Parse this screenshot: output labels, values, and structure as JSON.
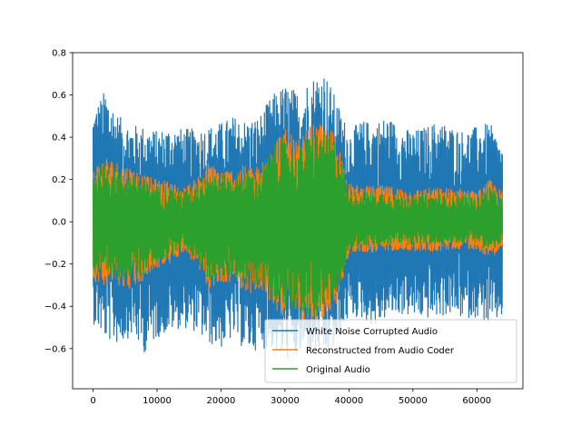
{
  "chart_data": {
    "type": "line",
    "title": "",
    "xlabel": "",
    "ylabel": "",
    "xlim": [
      -3200,
      67200
    ],
    "ylim": [
      -0.79,
      0.8
    ],
    "xticks": [
      0,
      10000,
      20000,
      30000,
      40000,
      50000,
      60000
    ],
    "xtick_labels": [
      "0",
      "10000",
      "20000",
      "30000",
      "40000",
      "50000",
      "60000"
    ],
    "yticks": [
      -0.6,
      -0.4,
      -0.2,
      0.0,
      0.2,
      0.4,
      0.6,
      0.8
    ],
    "ytick_labels": [
      "−0.6",
      "−0.4",
      "−0.2",
      "0.0",
      "0.2",
      "0.4",
      "0.6",
      "0.8"
    ],
    "grid": false,
    "legend_position": "lower-right",
    "x_range": [
      0,
      64000
    ],
    "series": [
      {
        "name": "White Noise Corrupted Audio",
        "color": "#1f77b4",
        "envelope_x": [
          0,
          2000,
          4000,
          6000,
          8000,
          10000,
          12000,
          14000,
          16000,
          18000,
          20000,
          22000,
          24000,
          26000,
          28000,
          30000,
          32000,
          34000,
          36000,
          38000,
          40000,
          42000,
          44000,
          46000,
          48000,
          50000,
          52000,
          54000,
          56000,
          58000,
          60000,
          62000,
          64000
        ],
        "upper": [
          0.53,
          0.63,
          0.5,
          0.46,
          0.45,
          0.43,
          0.45,
          0.44,
          0.44,
          0.45,
          0.47,
          0.5,
          0.48,
          0.5,
          0.6,
          0.65,
          0.62,
          0.68,
          0.73,
          0.58,
          0.43,
          0.48,
          0.47,
          0.5,
          0.45,
          0.43,
          0.45,
          0.48,
          0.45,
          0.43,
          0.45,
          0.47,
          0.35
        ],
        "lower": [
          -0.48,
          -0.56,
          -0.58,
          -0.54,
          -0.62,
          -0.55,
          -0.52,
          -0.5,
          -0.52,
          -0.58,
          -0.6,
          -0.55,
          -0.62,
          -0.6,
          -0.6,
          -0.65,
          -0.65,
          -0.62,
          -0.66,
          -0.6,
          -0.45,
          -0.46,
          -0.5,
          -0.45,
          -0.44,
          -0.45,
          -0.46,
          -0.45,
          -0.44,
          -0.46,
          -0.45,
          -0.5,
          -0.45
        ]
      },
      {
        "name": "Reconstructed from Audio Coder",
        "color": "#ff7f0e",
        "envelope_x": [
          0,
          2000,
          4000,
          6000,
          8000,
          10000,
          12000,
          14000,
          16000,
          18000,
          20000,
          22000,
          24000,
          26000,
          28000,
          30000,
          32000,
          34000,
          36000,
          38000,
          40000,
          42000,
          44000,
          46000,
          48000,
          50000,
          52000,
          54000,
          56000,
          58000,
          60000,
          62000,
          64000
        ],
        "upper": [
          0.26,
          0.31,
          0.28,
          0.26,
          0.22,
          0.2,
          0.19,
          0.16,
          0.2,
          0.28,
          0.25,
          0.25,
          0.27,
          0.26,
          0.4,
          0.44,
          0.38,
          0.46,
          0.46,
          0.42,
          0.18,
          0.17,
          0.17,
          0.17,
          0.16,
          0.15,
          0.16,
          0.16,
          0.16,
          0.16,
          0.14,
          0.2,
          0.14
        ],
        "lower": [
          -0.28,
          -0.3,
          -0.3,
          -0.32,
          -0.28,
          -0.22,
          -0.2,
          -0.14,
          -0.2,
          -0.32,
          -0.3,
          -0.28,
          -0.34,
          -0.33,
          -0.4,
          -0.46,
          -0.45,
          -0.52,
          -0.46,
          -0.4,
          -0.15,
          -0.14,
          -0.15,
          -0.14,
          -0.13,
          -0.14,
          -0.14,
          -0.14,
          -0.13,
          -0.13,
          -0.13,
          -0.17,
          -0.13
        ]
      },
      {
        "name": "Original Audio",
        "color": "#2ca02c",
        "envelope_x": [
          0,
          2000,
          4000,
          6000,
          8000,
          10000,
          12000,
          14000,
          16000,
          18000,
          20000,
          22000,
          24000,
          26000,
          28000,
          30000,
          32000,
          34000,
          36000,
          38000,
          40000,
          42000,
          44000,
          46000,
          48000,
          50000,
          52000,
          54000,
          56000,
          58000,
          60000,
          62000,
          64000
        ],
        "upper": [
          0.24,
          0.28,
          0.24,
          0.22,
          0.2,
          0.17,
          0.16,
          0.14,
          0.18,
          0.25,
          0.22,
          0.22,
          0.24,
          0.23,
          0.36,
          0.4,
          0.34,
          0.42,
          0.42,
          0.38,
          0.15,
          0.14,
          0.14,
          0.14,
          0.13,
          0.12,
          0.13,
          0.13,
          0.13,
          0.13,
          0.11,
          0.17,
          0.11
        ],
        "lower": [
          -0.25,
          -0.27,
          -0.27,
          -0.28,
          -0.25,
          -0.19,
          -0.17,
          -0.11,
          -0.17,
          -0.28,
          -0.27,
          -0.25,
          -0.31,
          -0.3,
          -0.37,
          -0.42,
          -0.41,
          -0.47,
          -0.42,
          -0.37,
          -0.13,
          -0.11,
          -0.12,
          -0.11,
          -0.1,
          -0.11,
          -0.11,
          -0.11,
          -0.1,
          -0.1,
          -0.1,
          -0.14,
          -0.1
        ]
      }
    ]
  }
}
